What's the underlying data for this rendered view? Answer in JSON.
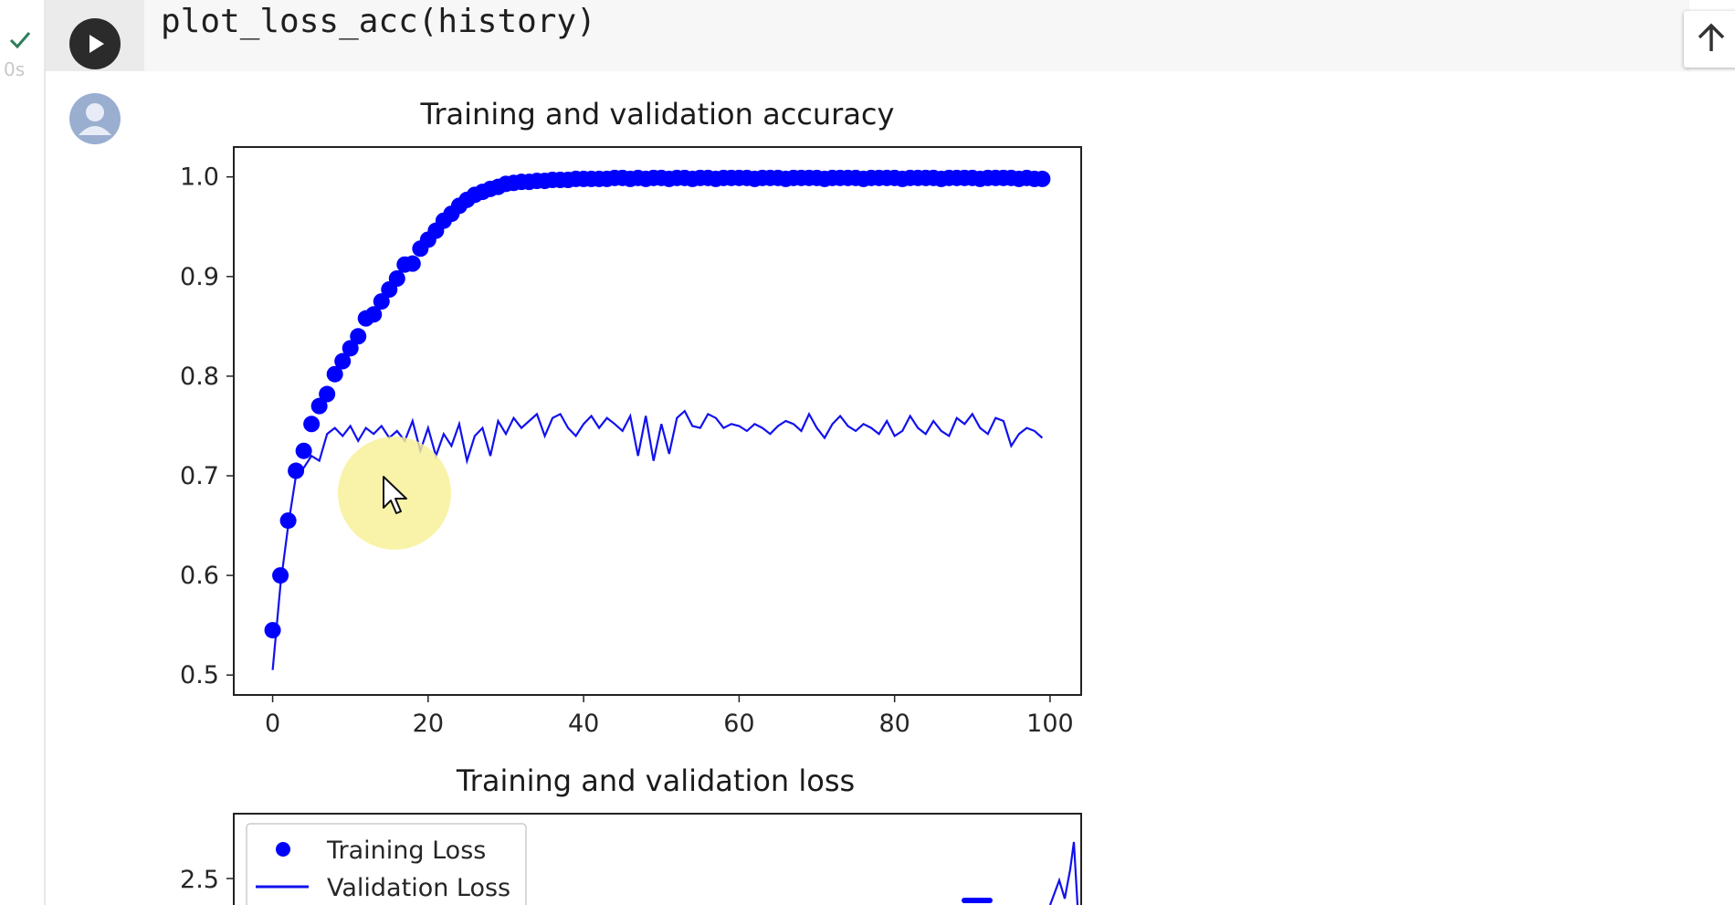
{
  "cell": {
    "status_time": "0s",
    "code": "plot_loss_acc(history)"
  },
  "icons": {
    "run": "play-icon",
    "status": "check-icon",
    "scroll_up": "arrow-up-icon",
    "output": "avatar-icon",
    "cursor": "mouse-pointer-icon"
  },
  "colors": {
    "series": "#0000ff",
    "status_check": "#2e7d5b"
  },
  "chart_data": [
    {
      "type": "line",
      "title": "Training and validation accuracy",
      "xlabel": "",
      "ylabel": "",
      "xlim": [
        -5,
        104
      ],
      "ylim": [
        0.48,
        1.03
      ],
      "xticks": [
        "0",
        "20",
        "40",
        "60",
        "80",
        "100"
      ],
      "yticks": [
        "0.5",
        "0.6",
        "0.7",
        "0.8",
        "0.9",
        "1.0"
      ],
      "grid": false,
      "series": [
        {
          "style": "dots",
          "values": [
            0.545,
            0.6,
            0.655,
            0.705,
            0.725,
            0.752,
            0.77,
            0.782,
            0.802,
            0.815,
            0.828,
            0.84,
            0.858,
            0.862,
            0.875,
            0.887,
            0.898,
            0.912,
            0.913,
            0.928,
            0.937,
            0.946,
            0.956,
            0.963,
            0.971,
            0.977,
            0.982,
            0.985,
            0.988,
            0.99,
            0.993,
            0.994,
            0.995,
            0.995,
            0.996,
            0.996,
            0.997,
            0.997,
            0.997,
            0.998,
            0.998,
            0.998,
            0.998,
            0.998,
            0.999,
            0.999,
            0.998,
            0.999,
            0.998,
            0.999,
            0.999,
            0.998,
            0.999,
            0.999,
            0.998,
            0.999,
            0.999,
            0.998,
            0.999,
            0.999,
            0.999,
            0.999,
            0.998,
            0.999,
            0.999,
            0.999,
            0.998,
            0.999,
            0.999,
            0.999,
            0.999,
            0.998,
            0.999,
            0.999,
            0.999,
            0.999,
            0.998,
            0.999,
            0.999,
            0.999,
            0.999,
            0.998,
            0.999,
            0.999,
            0.999,
            0.999,
            0.998,
            0.999,
            0.999,
            0.999,
            0.999,
            0.998,
            0.999,
            0.999,
            0.999,
            0.999,
            0.998,
            0.999,
            0.998,
            0.998
          ]
        },
        {
          "style": "line",
          "values": [
            0.505,
            0.59,
            0.65,
            0.7,
            0.708,
            0.72,
            0.715,
            0.742,
            0.748,
            0.74,
            0.75,
            0.735,
            0.748,
            0.742,
            0.75,
            0.738,
            0.745,
            0.735,
            0.755,
            0.725,
            0.748,
            0.72,
            0.742,
            0.73,
            0.752,
            0.715,
            0.74,
            0.748,
            0.72,
            0.755,
            0.742,
            0.758,
            0.748,
            0.755,
            0.762,
            0.74,
            0.758,
            0.762,
            0.748,
            0.74,
            0.752,
            0.76,
            0.748,
            0.758,
            0.752,
            0.745,
            0.76,
            0.72,
            0.76,
            0.715,
            0.752,
            0.722,
            0.758,
            0.765,
            0.75,
            0.748,
            0.762,
            0.758,
            0.748,
            0.752,
            0.75,
            0.745,
            0.752,
            0.748,
            0.742,
            0.75,
            0.755,
            0.752,
            0.745,
            0.762,
            0.748,
            0.738,
            0.752,
            0.76,
            0.75,
            0.745,
            0.752,
            0.748,
            0.742,
            0.755,
            0.74,
            0.745,
            0.76,
            0.748,
            0.742,
            0.755,
            0.745,
            0.74,
            0.758,
            0.752,
            0.762,
            0.748,
            0.742,
            0.758,
            0.755,
            0.73,
            0.742,
            0.748,
            0.745,
            0.738
          ]
        }
      ]
    },
    {
      "type": "line",
      "title": "Training and validation loss",
      "xlabel": "",
      "ylabel": "",
      "yticks": [
        "2.5"
      ],
      "legend": {
        "placement": "top-left",
        "entries": [
          "Training Loss",
          "Validation Loss"
        ]
      },
      "series": [
        {
          "name": "Training Loss",
          "style": "dots"
        },
        {
          "name": "Validation Loss",
          "style": "line"
        }
      ]
    }
  ]
}
